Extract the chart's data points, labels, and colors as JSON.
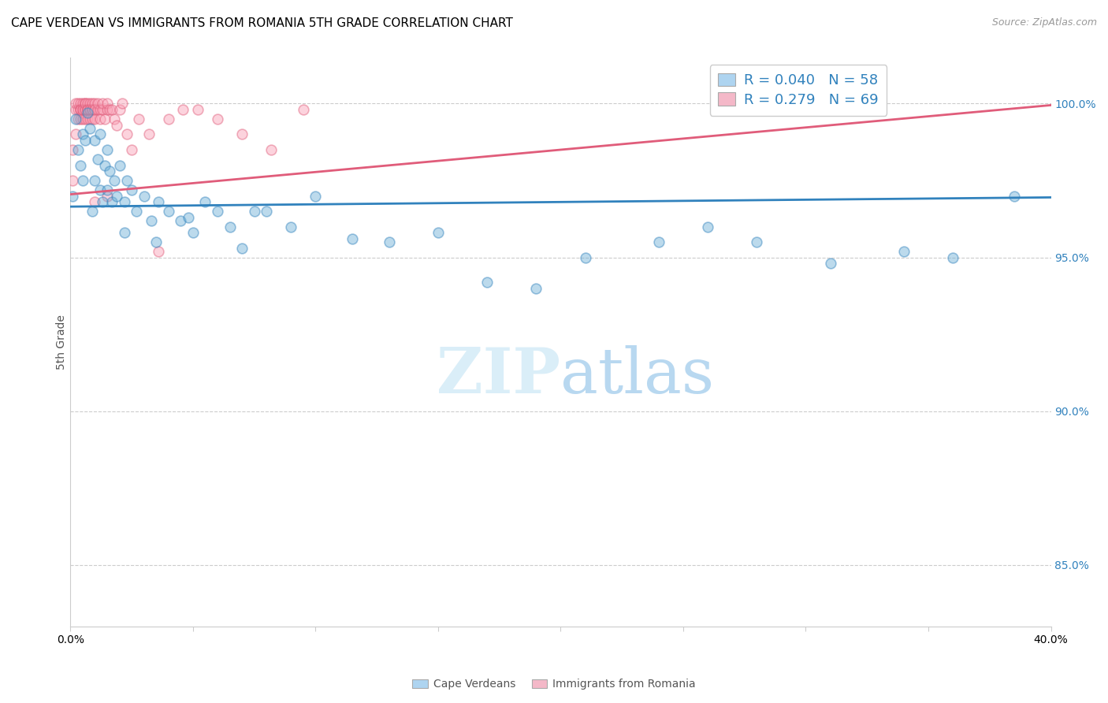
{
  "title": "CAPE VERDEAN VS IMMIGRANTS FROM ROMANIA 5TH GRADE CORRELATION CHART",
  "source": "Source: ZipAtlas.com",
  "ylabel": "5th Grade",
  "watermark": "ZIPatlas",
  "series_blue": {
    "name": "Cape Verdeans",
    "color": "#6baed6",
    "R": 0.04,
    "N": 58,
    "x": [
      0.001,
      0.002,
      0.003,
      0.004,
      0.005,
      0.005,
      0.006,
      0.007,
      0.008,
      0.009,
      0.01,
      0.01,
      0.011,
      0.012,
      0.012,
      0.013,
      0.014,
      0.015,
      0.015,
      0.016,
      0.017,
      0.018,
      0.019,
      0.02,
      0.022,
      0.023,
      0.025,
      0.027,
      0.03,
      0.033,
      0.036,
      0.04,
      0.045,
      0.05,
      0.055,
      0.06,
      0.065,
      0.07,
      0.08,
      0.09,
      0.1,
      0.115,
      0.13,
      0.15,
      0.17,
      0.19,
      0.21,
      0.24,
      0.26,
      0.28,
      0.31,
      0.34,
      0.36,
      0.385,
      0.035,
      0.048,
      0.022,
      0.075
    ],
    "y": [
      0.97,
      0.995,
      0.985,
      0.98,
      0.975,
      0.99,
      0.988,
      0.997,
      0.992,
      0.965,
      0.975,
      0.988,
      0.982,
      0.972,
      0.99,
      0.968,
      0.98,
      0.985,
      0.972,
      0.978,
      0.968,
      0.975,
      0.97,
      0.98,
      0.968,
      0.975,
      0.972,
      0.965,
      0.97,
      0.962,
      0.968,
      0.965,
      0.962,
      0.958,
      0.968,
      0.965,
      0.96,
      0.953,
      0.965,
      0.96,
      0.97,
      0.956,
      0.955,
      0.958,
      0.942,
      0.94,
      0.95,
      0.955,
      0.96,
      0.955,
      0.948,
      0.952,
      0.95,
      0.97,
      0.955,
      0.963,
      0.958,
      0.965
    ]
  },
  "series_pink": {
    "name": "Immigrants from Romania",
    "color": "#fa9fb5",
    "R": 0.279,
    "N": 69,
    "x": [
      0.001,
      0.001,
      0.002,
      0.002,
      0.002,
      0.003,
      0.003,
      0.003,
      0.004,
      0.004,
      0.004,
      0.004,
      0.004,
      0.005,
      0.005,
      0.005,
      0.005,
      0.005,
      0.006,
      0.006,
      0.006,
      0.006,
      0.006,
      0.007,
      0.007,
      0.007,
      0.007,
      0.007,
      0.008,
      0.008,
      0.008,
      0.008,
      0.009,
      0.009,
      0.009,
      0.009,
      0.01,
      0.01,
      0.01,
      0.01,
      0.011,
      0.011,
      0.012,
      0.012,
      0.013,
      0.013,
      0.014,
      0.015,
      0.015,
      0.016,
      0.017,
      0.018,
      0.019,
      0.02,
      0.021,
      0.023,
      0.025,
      0.028,
      0.032,
      0.036,
      0.04,
      0.046,
      0.052,
      0.06,
      0.07,
      0.082,
      0.095,
      0.015,
      0.01
    ],
    "y": [
      0.975,
      0.985,
      0.99,
      0.998,
      1.0,
      0.998,
      1.0,
      0.995,
      0.998,
      1.0,
      0.998,
      0.995,
      0.998,
      0.997,
      1.0,
      0.998,
      0.995,
      0.998,
      1.0,
      0.998,
      0.995,
      0.998,
      1.0,
      0.998,
      1.0,
      0.998,
      0.995,
      0.998,
      1.0,
      0.998,
      0.995,
      0.998,
      0.998,
      1.0,
      0.998,
      0.995,
      0.998,
      1.0,
      0.998,
      0.995,
      0.998,
      1.0,
      0.998,
      0.995,
      0.998,
      1.0,
      0.995,
      0.998,
      1.0,
      0.998,
      0.998,
      0.995,
      0.993,
      0.998,
      1.0,
      0.99,
      0.985,
      0.995,
      0.99,
      0.952,
      0.995,
      0.998,
      0.998,
      0.995,
      0.99,
      0.985,
      0.998,
      0.97,
      0.968
    ]
  },
  "trend_blue_color": "#3182bd",
  "trend_pink_color": "#e05c7a",
  "trend_blue_y0": 0.9665,
  "trend_blue_y1": 0.9695,
  "trend_pink_y0": 0.9705,
  "trend_pink_y1": 0.9995,
  "xlim": [
    0.0,
    0.4
  ],
  "ylim": [
    0.83,
    1.015
  ],
  "yticks": [
    0.85,
    0.9,
    0.95,
    1.0
  ],
  "ytick_labels": [
    "85.0%",
    "90.0%",
    "95.0%",
    "100.0%"
  ],
  "xtick_positions": [
    0.0,
    0.05,
    0.1,
    0.15,
    0.2,
    0.25,
    0.3,
    0.35,
    0.4
  ],
  "xtick_labels": [
    "0.0%",
    "",
    "",
    "",
    "",
    "",
    "",
    "",
    "40.0%"
  ],
  "grid_color": "#cccccc",
  "legend_color": "#3182bd",
  "title_fontsize": 11,
  "source_fontsize": 9,
  "axis_label_color": "#3182bd",
  "watermark_color": "#cce4f5",
  "marker_size": 85,
  "marker_alpha": 0.45,
  "marker_lw": 1.2,
  "trend_lw": 2.0
}
